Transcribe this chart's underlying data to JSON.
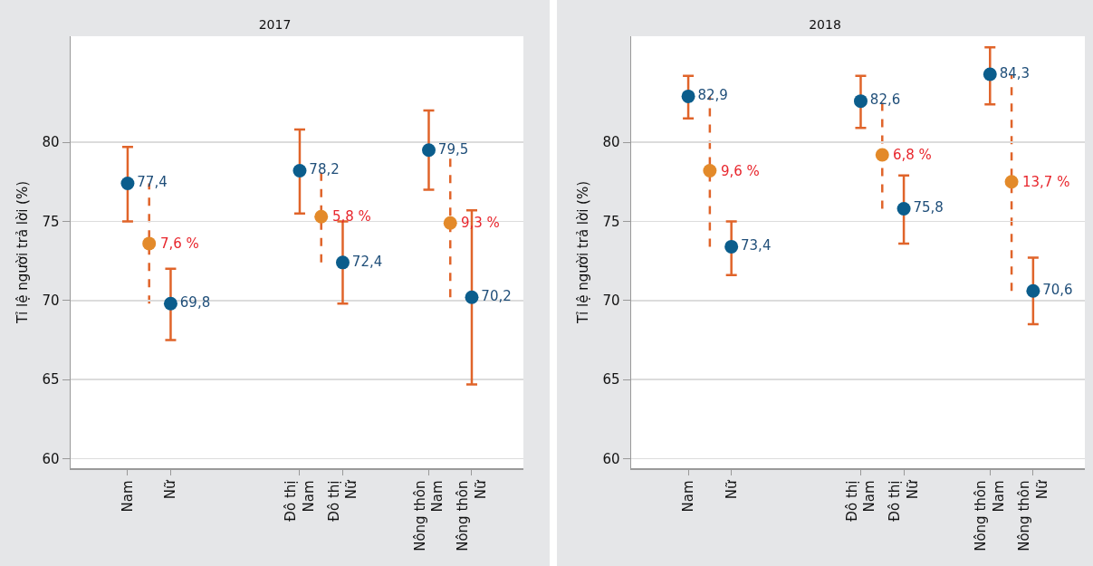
{
  "chart_data": [
    {
      "type": "scatter",
      "title": "2017",
      "ylabel": "Tỉ lệ người trả lời (%)",
      "categories": [
        null,
        null,
        "Nam",
        null,
        "Nữ",
        null,
        null,
        null,
        null,
        null,
        "Đô thị\nNam",
        null,
        "Đô thị\nNữ",
        null,
        null,
        null,
        "Nông thôn\nNam",
        null,
        "Nông thôn\nNữ",
        null,
        null
      ],
      "series": [
        {
          "color": "#0b5d8c",
          "line_style": "solid",
          "values": [
            null,
            null,
            77.4,
            null,
            69.8,
            null,
            null,
            null,
            null,
            null,
            78.2,
            null,
            72.4,
            null,
            null,
            null,
            79.5,
            null,
            70.2,
            null,
            null
          ],
          "errors": [
            null,
            null,
            [
              75.0,
              79.7
            ],
            null,
            [
              67.5,
              72.0
            ],
            null,
            null,
            null,
            null,
            null,
            [
              75.5,
              80.8
            ],
            null,
            [
              69.8,
              75.0
            ],
            null,
            null,
            null,
            [
              77.0,
              82.0
            ],
            null,
            [
              64.7,
              75.7
            ],
            null,
            null
          ],
          "value_labels": [
            null,
            null,
            "77,4",
            null,
            "69,8",
            null,
            null,
            null,
            null,
            null,
            "78,2",
            null,
            "72,4",
            null,
            null,
            null,
            "79,5",
            null,
            "70,2",
            null,
            null
          ]
        },
        {
          "color": "#e38a2a",
          "line_style": "dashed",
          "values": [
            null,
            null,
            null,
            73.6,
            null,
            null,
            null,
            null,
            null,
            null,
            null,
            75.3,
            null,
            null,
            null,
            null,
            null,
            74.9,
            null,
            null,
            null
          ],
          "errors": [
            null,
            null,
            null,
            [
              69.8,
              77.4
            ],
            null,
            null,
            null,
            null,
            null,
            null,
            null,
            [
              72.4,
              78.2
            ],
            null,
            null,
            null,
            null,
            null,
            [
              70.2,
              79.5
            ],
            null,
            null,
            null
          ]
        }
      ],
      "annotations": [
        "7,6 %",
        "5,8 %",
        "9,3 %"
      ],
      "ylim": [
        59.4,
        86.7
      ],
      "yticks": [
        60,
        65,
        70,
        75,
        80
      ],
      "grid": "y",
      "marker": "circle"
    },
    {
      "type": "scatter",
      "title": "2018",
      "ylabel": "Tỉ lệ người trả lời (%)",
      "categories": [
        null,
        null,
        "Nam",
        null,
        "Nữ",
        null,
        null,
        null,
        null,
        null,
        "Đô thị\nNam",
        null,
        "Đô thị\nNữ",
        null,
        null,
        null,
        "Nông thôn\nNam",
        null,
        "Nông thôn\nNữ",
        null,
        null
      ],
      "series": [
        {
          "color": "#0b5d8c",
          "line_style": "solid",
          "values": [
            null,
            null,
            82.9,
            null,
            73.4,
            null,
            null,
            null,
            null,
            null,
            82.6,
            null,
            75.8,
            null,
            null,
            null,
            84.3,
            null,
            70.6,
            null,
            null
          ],
          "errors": [
            null,
            null,
            [
              81.5,
              84.2
            ],
            null,
            [
              71.6,
              75.0
            ],
            null,
            null,
            null,
            null,
            null,
            [
              80.9,
              84.2
            ],
            null,
            [
              73.6,
              77.9
            ],
            null,
            null,
            null,
            [
              82.4,
              86.0
            ],
            null,
            [
              68.5,
              72.7
            ],
            null,
            null
          ],
          "value_labels": [
            null,
            null,
            "82,9",
            null,
            "73,4",
            null,
            null,
            null,
            null,
            null,
            "82,6",
            null,
            "75,8",
            null,
            null,
            null,
            "84,3",
            null,
            "70,6",
            null,
            null
          ]
        },
        {
          "color": "#e38a2a",
          "line_style": "dashed",
          "values": [
            null,
            null,
            null,
            78.2,
            null,
            null,
            null,
            null,
            null,
            null,
            null,
            79.2,
            null,
            null,
            null,
            null,
            null,
            77.5,
            null,
            null,
            null
          ],
          "errors": [
            null,
            null,
            null,
            [
              73.4,
              82.9
            ],
            null,
            null,
            null,
            null,
            null,
            null,
            null,
            [
              75.8,
              82.6
            ],
            null,
            null,
            null,
            null,
            null,
            [
              70.6,
              84.3
            ],
            null,
            null,
            null
          ]
        }
      ],
      "annotations": [
        "9,6 %",
        "6,8 %",
        "13,7 %"
      ],
      "ylim": [
        59.4,
        86.7
      ],
      "yticks": [
        60,
        65,
        70,
        75,
        80
      ],
      "grid": "y",
      "marker": "circle"
    }
  ]
}
